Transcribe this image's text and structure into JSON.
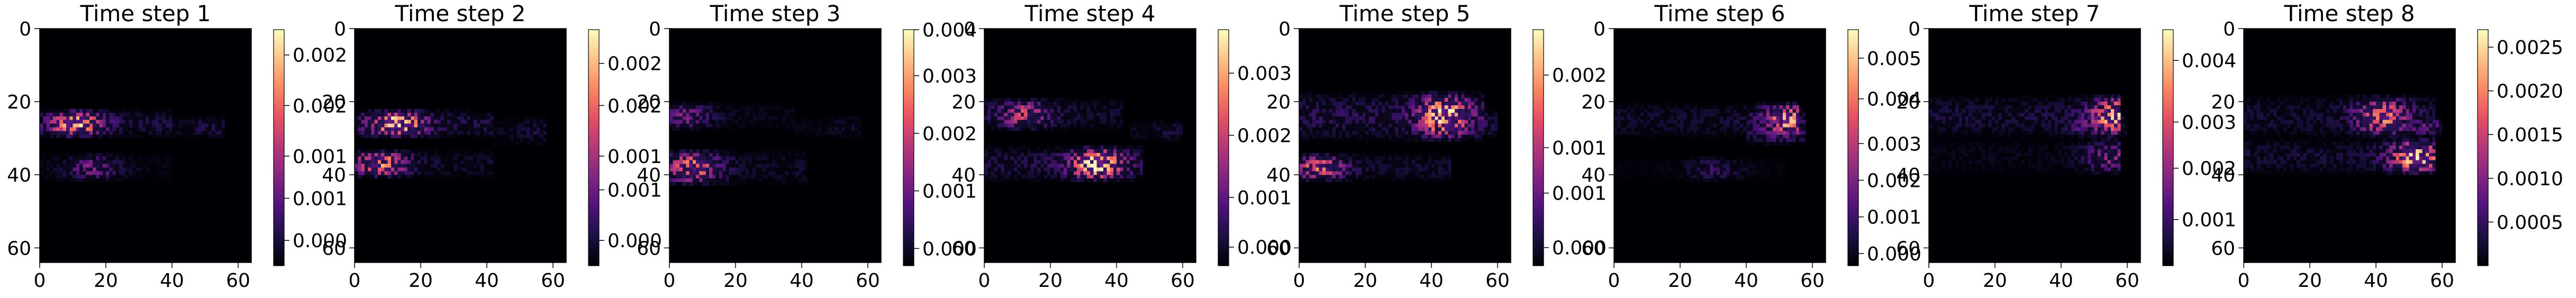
{
  "figure": {
    "colormap": "magma",
    "colormap_stops": [
      "#000004",
      "#1c1044",
      "#4f127b",
      "#812581",
      "#b5367a",
      "#e55064",
      "#fb8761",
      "#fec287",
      "#fcfdbf"
    ]
  },
  "chart_data": [
    {
      "type": "heatmap",
      "title": "Time step 1",
      "xlabel": "",
      "ylabel": "",
      "xlim": [
        0,
        64
      ],
      "ylim": [
        64,
        0
      ],
      "xticks": [
        "0",
        "20",
        "40",
        "60"
      ],
      "yticks": [
        "0",
        "20",
        "40",
        "60"
      ],
      "colorbar_ticks": [
        "0.000",
        "0.001",
        "0.001",
        "0.002",
        "0.002"
      ],
      "colorbar_tick_values": [
        0.0003,
        0.0008,
        0.0013,
        0.0019,
        0.0025
      ],
      "vmax": 0.0028,
      "bands": [
        {
          "y": [
            22,
            30
          ],
          "x": [
            0,
            40
          ],
          "peak_x": 11,
          "intensity": 0.85,
          "tail": 0.15,
          "seed": 11
        },
        {
          "y": [
            34,
            42
          ],
          "x": [
            0,
            40
          ],
          "peak_x": 16,
          "intensity": 0.35,
          "tail": 0.12,
          "seed": 12
        },
        {
          "y": [
            24,
            30
          ],
          "x": [
            40,
            56
          ],
          "peak_x": 52,
          "intensity": 0.15,
          "tail": 0.3,
          "seed": 13
        }
      ]
    },
    {
      "type": "heatmap",
      "title": "Time step 2",
      "xlabel": "",
      "ylabel": "",
      "xlim": [
        0,
        64
      ],
      "ylim": [
        64,
        0
      ],
      "xticks": [
        "0",
        "20",
        "40",
        "60"
      ],
      "yticks": [
        "0",
        "20",
        "40",
        "60"
      ],
      "colorbar_ticks": [
        "0.000",
        "0.001",
        "0.001",
        "0.002",
        "0.002"
      ],
      "colorbar_tick_values": [
        0.0003,
        0.0009,
        0.0013,
        0.0019,
        0.0024
      ],
      "vmax": 0.0028,
      "bands": [
        {
          "y": [
            22,
            30
          ],
          "x": [
            0,
            42
          ],
          "peak_x": 13,
          "intensity": 0.95,
          "tail": 0.15,
          "seed": 21
        },
        {
          "y": [
            33,
            41
          ],
          "x": [
            0,
            42
          ],
          "peak_x": 8,
          "intensity": 0.75,
          "tail": 0.12,
          "seed": 22
        },
        {
          "y": [
            24,
            32
          ],
          "x": [
            42,
            58
          ],
          "peak_x": 54,
          "intensity": 0.12,
          "tail": 0.3,
          "seed": 23
        }
      ]
    },
    {
      "type": "heatmap",
      "title": "Time step 3",
      "xlabel": "",
      "ylabel": "",
      "xlim": [
        0,
        64
      ],
      "ylim": [
        64,
        0
      ],
      "xticks": [
        "0",
        "20",
        "40",
        "60"
      ],
      "yticks": [
        "0",
        "20",
        "40",
        "60"
      ],
      "colorbar_ticks": [
        "0.000",
        "0.001",
        "0.002",
        "0.003",
        "0.004"
      ],
      "colorbar_tick_values": [
        0.0003,
        0.0013,
        0.0023,
        0.0033,
        0.0041
      ],
      "vmax": 0.0041,
      "bands": [
        {
          "y": [
            20,
            28
          ],
          "x": [
            0,
            38
          ],
          "peak_x": 5,
          "intensity": 0.35,
          "tail": 0.15,
          "seed": 31
        },
        {
          "y": [
            33,
            43
          ],
          "x": [
            0,
            42
          ],
          "peak_x": 7,
          "intensity": 0.7,
          "tail": 0.12,
          "seed": 32
        },
        {
          "y": [
            24,
            30
          ],
          "x": [
            38,
            58
          ],
          "peak_x": 54,
          "intensity": 0.1,
          "tail": 0.3,
          "seed": 33
        }
      ]
    },
    {
      "type": "heatmap",
      "title": "Time step 4",
      "xlabel": "",
      "ylabel": "",
      "xlim": [
        0,
        64
      ],
      "ylim": [
        64,
        0
      ],
      "xticks": [
        "0",
        "20",
        "40",
        "60"
      ],
      "yticks": [
        "0",
        "20",
        "40",
        "60"
      ],
      "colorbar_ticks": [
        "0.000",
        "0.001",
        "0.002",
        "0.003"
      ],
      "colorbar_tick_values": [
        0.0003,
        0.0011,
        0.0021,
        0.0031
      ],
      "vmax": 0.0038,
      "bands": [
        {
          "y": [
            19,
            28
          ],
          "x": [
            0,
            42
          ],
          "peak_x": 12,
          "intensity": 0.55,
          "tail": 0.18,
          "seed": 41
        },
        {
          "y": [
            32,
            42
          ],
          "x": [
            0,
            48
          ],
          "peak_x": 34,
          "intensity": 0.95,
          "tail": 0.15,
          "seed": 42
        },
        {
          "y": [
            25,
            31
          ],
          "x": [
            44,
            60
          ],
          "peak_x": 54,
          "intensity": 0.12,
          "tail": 0.3,
          "seed": 43
        }
      ]
    },
    {
      "type": "heatmap",
      "title": "Time step 5",
      "xlabel": "",
      "ylabel": "",
      "xlim": [
        0,
        64
      ],
      "ylim": [
        64,
        0
      ],
      "xticks": [
        "0",
        "20",
        "40",
        "60"
      ],
      "yticks": [
        "0",
        "20",
        "40",
        "60"
      ],
      "colorbar_ticks": [
        "0.000",
        "0.001",
        "0.001",
        "0.002"
      ],
      "colorbar_tick_values": [
        0.0002,
        0.0008,
        0.0013,
        0.0021
      ],
      "vmax": 0.0026,
      "bands": [
        {
          "y": [
            17,
            31
          ],
          "x": [
            0,
            56
          ],
          "peak_x": 44,
          "intensity": 0.9,
          "tail": 0.18,
          "seed": 51
        },
        {
          "y": [
            34,
            42
          ],
          "x": [
            0,
            46
          ],
          "peak_x": 6,
          "intensity": 0.65,
          "tail": 0.15,
          "seed": 52
        },
        {
          "y": [
            22,
            30
          ],
          "x": [
            46,
            60
          ],
          "peak_x": 50,
          "intensity": 0.25,
          "tail": 0.3,
          "seed": 53
        }
      ]
    },
    {
      "type": "heatmap",
      "title": "Time step 6",
      "xlabel": "",
      "ylabel": "",
      "xlim": [
        0,
        64
      ],
      "ylim": [
        64,
        0
      ],
      "xticks": [
        "0",
        "20",
        "40",
        "60"
      ],
      "yticks": [
        "0",
        "20",
        "40",
        "60"
      ],
      "colorbar_ticks": [
        "0.000",
        "0.001",
        "0.002",
        "0.003",
        "0.004",
        "0.005"
      ],
      "colorbar_tick_values": [
        0.0003,
        0.0012,
        0.0021,
        0.003,
        0.0041,
        0.0051
      ],
      "vmax": 0.0058,
      "bands": [
        {
          "y": [
            20,
            30
          ],
          "x": [
            0,
            56
          ],
          "peak_x": 53,
          "intensity": 0.8,
          "tail": 0.12,
          "seed": 61
        },
        {
          "y": [
            35,
            42
          ],
          "x": [
            0,
            52
          ],
          "peak_x": 30,
          "intensity": 0.2,
          "tail": 0.12,
          "seed": 62
        },
        {
          "y": [
            22,
            32
          ],
          "x": [
            40,
            58
          ],
          "peak_x": 50,
          "intensity": 0.35,
          "tail": 0.25,
          "seed": 63
        }
      ]
    },
    {
      "type": "heatmap",
      "title": "Time step 7",
      "xlabel": "",
      "ylabel": "",
      "xlim": [
        0,
        64
      ],
      "ylim": [
        64,
        0
      ],
      "xticks": [
        "0",
        "20",
        "40",
        "60"
      ],
      "yticks": [
        "0",
        "20",
        "40",
        "60"
      ],
      "colorbar_ticks": [
        "0.001",
        "0.002",
        "0.003",
        "0.004"
      ],
      "colorbar_tick_values": [
        0.0009,
        0.0019,
        0.0028,
        0.004
      ],
      "vmax": 0.0046,
      "bands": [
        {
          "y": [
            18,
            30
          ],
          "x": [
            0,
            58
          ],
          "peak_x": 56,
          "intensity": 0.8,
          "tail": 0.15,
          "seed": 71
        },
        {
          "y": [
            30,
            40
          ],
          "x": [
            0,
            58
          ],
          "peak_x": 55,
          "intensity": 0.4,
          "tail": 0.12,
          "seed": 72
        },
        {
          "y": [
            22,
            30
          ],
          "x": [
            40,
            60
          ],
          "peak_x": 48,
          "intensity": 0.3,
          "tail": 0.25,
          "seed": 73
        }
      ]
    },
    {
      "type": "heatmap",
      "title": "Time step 8",
      "xlabel": "",
      "ylabel": "",
      "xlim": [
        0,
        64
      ],
      "ylim": [
        64,
        0
      ],
      "xticks": [
        "0",
        "20",
        "40",
        "60"
      ],
      "yticks": [
        "0",
        "20",
        "40",
        "60"
      ],
      "colorbar_ticks": [
        "0.0005",
        "0.0010",
        "0.0015",
        "0.0020",
        "0.0025"
      ],
      "colorbar_tick_values": [
        0.0005,
        0.001,
        0.0015,
        0.002,
        0.0025
      ],
      "vmax": 0.0027,
      "bands": [
        {
          "y": [
            18,
            30
          ],
          "x": [
            0,
            58
          ],
          "peak_x": 42,
          "intensity": 0.7,
          "tail": 0.15,
          "seed": 81
        },
        {
          "y": [
            30,
            40
          ],
          "x": [
            0,
            58
          ],
          "peak_x": 52,
          "intensity": 0.9,
          "tail": 0.12,
          "seed": 82
        },
        {
          "y": [
            24,
            30
          ],
          "x": [
            44,
            60
          ],
          "peak_x": 55,
          "intensity": 0.3,
          "tail": 0.25,
          "seed": 83
        }
      ]
    }
  ]
}
